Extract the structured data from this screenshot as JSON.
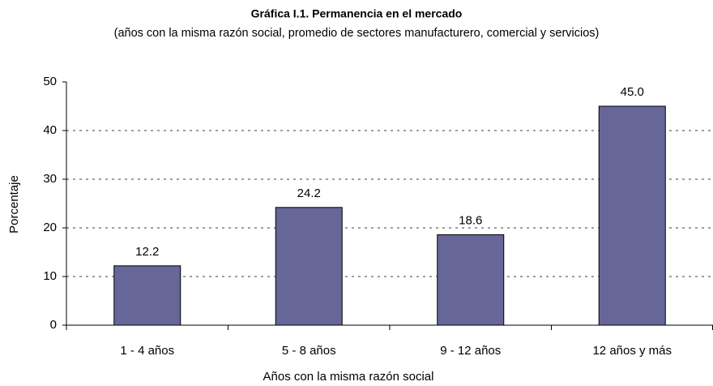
{
  "chart_data": {
    "type": "bar",
    "title": "Gráfica I.1. Permanencia en el mercado",
    "subtitle": "(años con la misma razón social, promedio de sectores manufacturero, comercial y servicios)",
    "x_label": "Años con la misma razón social",
    "y_label": "Porcentaje",
    "categories": [
      "1 - 4 años",
      "5 - 8 años",
      "9 - 12 años",
      "12 años y más"
    ],
    "values": [
      12.2,
      24.2,
      18.6,
      45
    ],
    "value_labels": [
      "12.2",
      "24.2",
      "18.6",
      "45.0"
    ],
    "color": "#666699",
    "ylim": [
      0,
      50
    ],
    "yticks": [
      0,
      10,
      20,
      30,
      40,
      50
    ],
    "grid": true
  }
}
